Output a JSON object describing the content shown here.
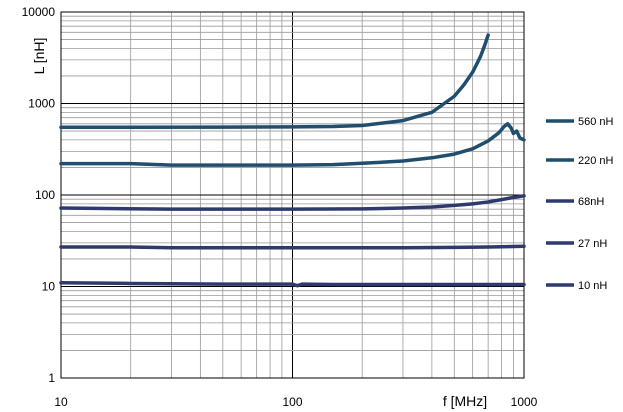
{
  "chart_data": {
    "type": "line",
    "title": "",
    "xlabel": "f [MHz]",
    "ylabel": "L [nH]",
    "x_scale": "log",
    "y_scale": "log",
    "xlim": [
      10,
      1000
    ],
    "ylim": [
      1,
      10000
    ],
    "grid": true,
    "legend_position": "right",
    "x_ticks": [
      "10",
      "100",
      "1000"
    ],
    "y_ticks": [
      "1",
      "10",
      "100",
      "1000",
      "10000"
    ],
    "series": [
      {
        "name": "560 nH",
        "color": "#1f4e6e",
        "x": [
          10,
          20,
          50,
          100,
          150,
          200,
          300,
          400,
          500,
          550,
          600,
          650,
          680,
          700
        ],
        "y": [
          550,
          550,
          552,
          555,
          560,
          575,
          650,
          800,
          1200,
          1600,
          2200,
          3300,
          4500,
          5600
        ]
      },
      {
        "name": "220 nH",
        "color": "#1f4e6e",
        "x": [
          10,
          20,
          30,
          50,
          100,
          150,
          200,
          300,
          400,
          500,
          600,
          700,
          780,
          820,
          850,
          880,
          900,
          930,
          960,
          1000
        ],
        "y": [
          220,
          220,
          212,
          212,
          212,
          215,
          222,
          235,
          255,
          280,
          320,
          390,
          480,
          560,
          600,
          540,
          470,
          500,
          420,
          400
        ]
      },
      {
        "name": "68nH",
        "color": "#2e3a6e",
        "x": [
          10,
          30,
          50,
          100,
          200,
          300,
          400,
          500,
          600,
          700,
          800,
          900,
          1000
        ],
        "y": [
          72,
          70,
          70,
          70,
          70.5,
          72,
          74,
          77,
          80,
          84,
          89,
          94,
          98
        ]
      },
      {
        "name": "27 nH",
        "color": "#2e3a6e",
        "x": [
          10,
          20,
          30,
          100,
          300,
          500,
          700,
          1000
        ],
        "y": [
          27,
          27,
          26.5,
          26.5,
          26.5,
          26.8,
          27,
          27.5
        ]
      },
      {
        "name": "10 nH",
        "color": "#2e3a6e",
        "x": [
          10,
          20,
          50,
          100,
          105,
          110,
          150,
          300,
          600,
          1000
        ],
        "y": [
          11,
          10.8,
          10.6,
          10.6,
          10.2,
          10.6,
          10.5,
          10.5,
          10.5,
          10.5
        ]
      }
    ]
  }
}
